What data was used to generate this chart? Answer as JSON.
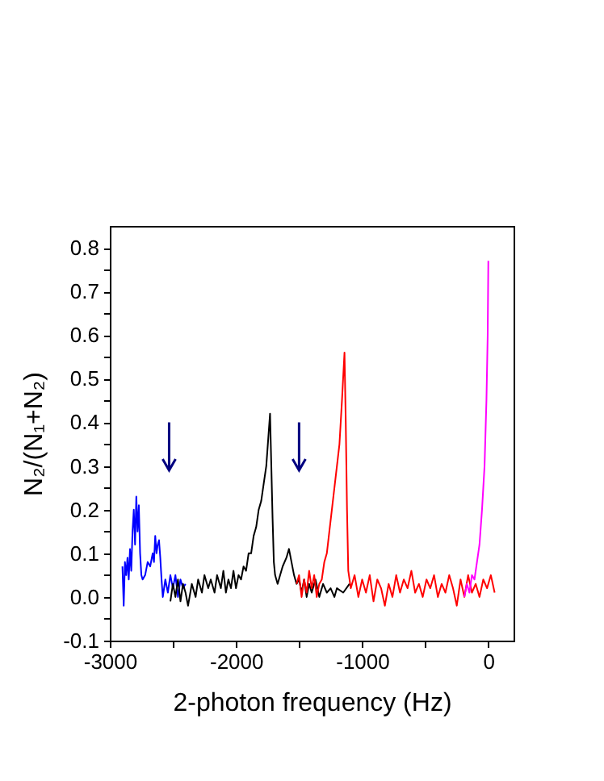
{
  "chart_data": {
    "type": "line",
    "xlabel": "2-photon frequency (Hz)",
    "ylabel": "N₂/(N₁+N₂)",
    "xlim": [
      -3000,
      200
    ],
    "ylim": [
      -0.1,
      0.85
    ],
    "xticks": [
      -3000,
      {
        "value": -2500,
        "label": null
      },
      -2000,
      {
        "value": -1500,
        "label": null
      },
      -1000,
      {
        "value": -500,
        "label": null
      },
      0
    ],
    "yticks": [
      {
        "value": -0.1,
        "label": "-0.1"
      },
      {
        "value": -0.05,
        "label": null
      },
      {
        "value": 0,
        "label": "0.0"
      },
      {
        "value": 0.05,
        "label": null
      },
      0.1,
      {
        "value": 0.15,
        "label": null
      },
      0.2,
      {
        "value": 0.25,
        "label": null
      },
      0.3,
      {
        "value": 0.35,
        "label": null
      },
      0.4,
      {
        "value": 0.45,
        "label": null
      },
      0.5,
      {
        "value": 0.55,
        "label": null
      },
      0.6,
      {
        "value": 0.65,
        "label": null
      },
      0.7,
      {
        "value": 0.75,
        "label": null
      },
      0.8
    ],
    "series": [
      {
        "color": "#0000ff",
        "x": [
          -2900,
          -2890,
          -2880,
          -2870,
          -2860,
          -2850,
          -2840,
          -2830,
          -2820,
          -2810,
          -2800,
          -2790,
          -2780,
          -2770,
          -2760,
          -2750,
          -2740,
          -2720,
          -2700,
          -2680,
          -2660,
          -2650,
          -2640,
          -2630,
          -2620,
          -2610,
          -2600,
          -2590,
          -2580,
          -2560,
          -2540,
          -2520,
          -2500,
          -2480,
          -2460,
          -2440,
          -2420,
          -2400
        ],
        "values": [
          0.07,
          -0.02,
          0.08,
          0.05,
          0.09,
          0.04,
          0.11,
          0.06,
          0.15,
          0.2,
          0.12,
          0.23,
          0.15,
          0.21,
          0.1,
          0.05,
          0.04,
          0.05,
          0.08,
          0.07,
          0.1,
          0.08,
          0.14,
          0.1,
          0.12,
          0.13,
          0.09,
          0.04,
          0.0,
          0.04,
          0.01,
          0.05,
          0.02,
          0.05,
          0.0,
          0.04,
          0.02,
          0.03
        ]
      },
      {
        "color": "#000000",
        "x": [
          -2520,
          -2500,
          -2480,
          -2460,
          -2440,
          -2420,
          -2400,
          -2380,
          -2350,
          -2320,
          -2300,
          -2270,
          -2250,
          -2220,
          -2200,
          -2170,
          -2150,
          -2120,
          -2100,
          -2080,
          -2060,
          -2040,
          -2020,
          -2000,
          -1980,
          -1960,
          -1940,
          -1920,
          -1900,
          -1880,
          -1860,
          -1840,
          -1820,
          -1800,
          -1780,
          -1760,
          -1745,
          -1730,
          -1720,
          -1710,
          -1700,
          -1690,
          -1670,
          -1650,
          -1630,
          -1600,
          -1580,
          -1560,
          -1540,
          -1520,
          -1500,
          -1480,
          -1460,
          -1440,
          -1420,
          -1400,
          -1370,
          -1340,
          -1310,
          -1280,
          -1250,
          -1220,
          -1200,
          -1150,
          -1100
        ],
        "values": [
          -0.01,
          0.03,
          0.0,
          0.04,
          -0.01,
          0.03,
          0.01,
          -0.02,
          0.03,
          0.0,
          0.04,
          0.01,
          0.05,
          0.02,
          0.04,
          0.01,
          0.05,
          0.02,
          0.06,
          0.01,
          0.04,
          0.02,
          0.06,
          0.02,
          0.05,
          0.04,
          0.07,
          0.06,
          0.1,
          0.1,
          0.14,
          0.16,
          0.2,
          0.22,
          0.26,
          0.3,
          0.36,
          0.42,
          0.3,
          0.18,
          0.08,
          0.05,
          0.03,
          0.05,
          0.07,
          0.09,
          0.11,
          0.08,
          0.05,
          0.03,
          0.04,
          0.01,
          0.04,
          0.0,
          0.03,
          0.01,
          0.04,
          0.0,
          0.03,
          0.01,
          0.02,
          0.0,
          0.02,
          0.01,
          0.03
        ]
      },
      {
        "color": "#ff0000",
        "x": [
          -1520,
          -1500,
          -1480,
          -1460,
          -1440,
          -1420,
          -1400,
          -1380,
          -1360,
          -1340,
          -1320,
          -1300,
          -1280,
          -1260,
          -1240,
          -1220,
          -1200,
          -1180,
          -1160,
          -1140,
          -1130,
          -1120,
          -1110,
          -1090,
          -1060,
          -1030,
          -1000,
          -970,
          -940,
          -910,
          -880,
          -850,
          -820,
          -790,
          -760,
          -730,
          -700,
          -670,
          -640,
          -610,
          -580,
          -550,
          -520,
          -490,
          -460,
          -430,
          -400,
          -370,
          -340,
          -310,
          -280,
          -250,
          -220,
          -190,
          -160,
          -130,
          -100,
          -70,
          -40,
          -10,
          20,
          50
        ],
        "values": [
          0.03,
          0.05,
          0.0,
          0.04,
          0.01,
          0.06,
          0.02,
          0.05,
          0.0,
          0.03,
          0.04,
          0.08,
          0.1,
          0.15,
          0.2,
          0.25,
          0.3,
          0.35,
          0.45,
          0.56,
          0.4,
          0.2,
          0.06,
          0.02,
          0.05,
          0.0,
          0.04,
          0.01,
          0.05,
          -0.01,
          0.04,
          0.02,
          -0.02,
          0.03,
          0.0,
          0.05,
          0.01,
          0.04,
          0.02,
          0.06,
          0.01,
          0.03,
          0.0,
          0.04,
          0.02,
          0.05,
          0.0,
          0.03,
          0.01,
          0.05,
          0.02,
          -0.02,
          0.04,
          0.0,
          0.05,
          0.01,
          0.03,
          0.0,
          0.04,
          0.02,
          0.05,
          0.01
        ]
      },
      {
        "color": "#ff00ff",
        "x": [
          -190,
          -170,
          -150,
          -130,
          -110,
          -90,
          -70,
          -50,
          -30,
          -15,
          -5,
          0
        ],
        "values": [
          0.0,
          0.03,
          0.01,
          0.05,
          0.04,
          0.08,
          0.12,
          0.2,
          0.3,
          0.45,
          0.6,
          0.77
        ]
      }
    ]
  }
}
